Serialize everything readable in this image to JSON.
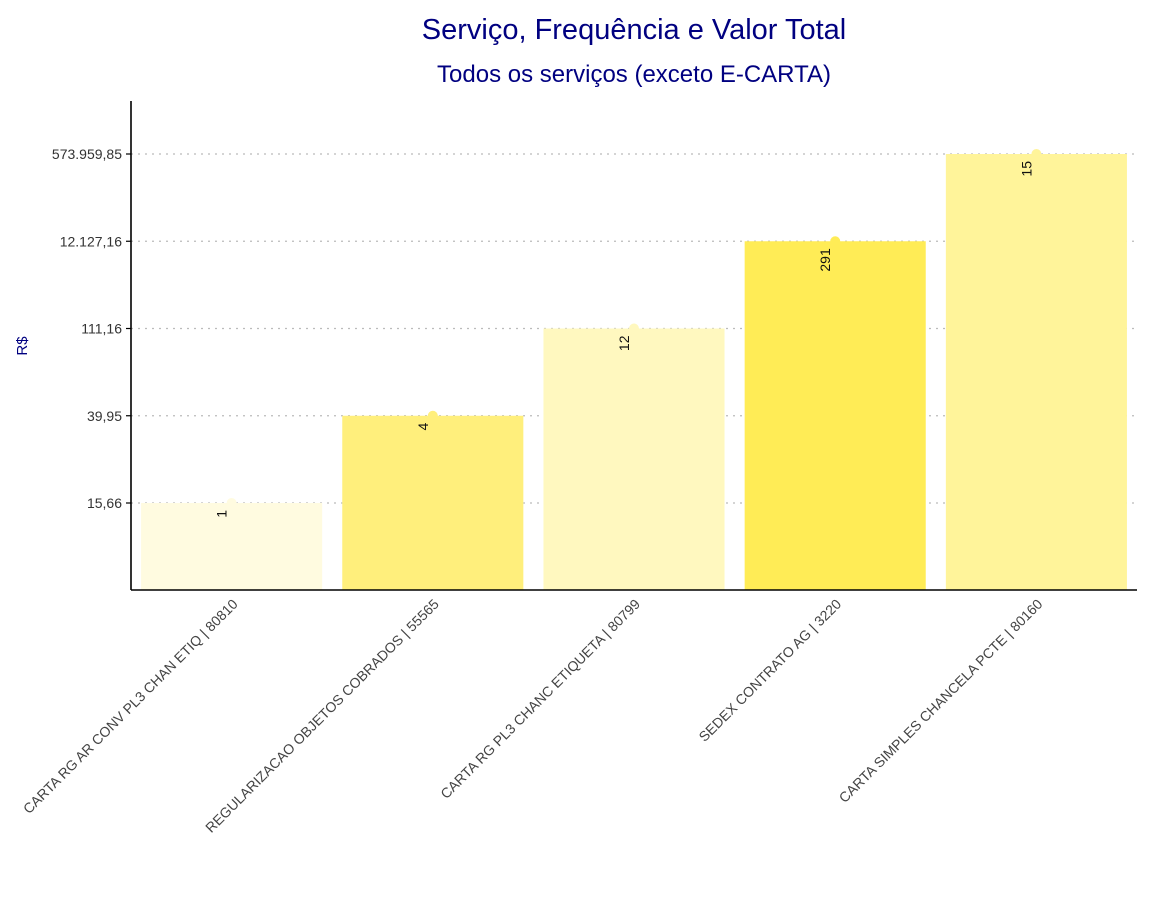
{
  "chart_data": {
    "type": "bar",
    "title": "Serviço, Frequência e Valor Total",
    "subtitle": "Todos os serviços (exceto E-CARTA)",
    "xlabel": "",
    "ylabel": "R$",
    "y_scale": "log",
    "grid": "horizontal dotted at tick values",
    "legend": "none",
    "yticks": [
      {
        "value": 15.66,
        "label": "15,66"
      },
      {
        "value": 39.95,
        "label": "39,95"
      },
      {
        "value": 111.16,
        "label": "111,16"
      },
      {
        "value": 12127.16,
        "label": "12.127,16"
      },
      {
        "value": 573959.85,
        "label": "573.959,85"
      }
    ],
    "categories": [
      "CARTA RG AR CONV PL3 CHAN ETIQ | 80810",
      "REGULARIZACAO OBJETOS COBRADOS | 55565",
      "CARTA RG PL3 CHANC ETIQUETA | 80799",
      "SEDEX CONTRATO AG | 3220",
      "CARTA SIMPLES CHANCELA PCTE | 80160"
    ],
    "values": [
      15.66,
      39.95,
      111.16,
      12127.16,
      573959.85
    ],
    "counts": [
      1,
      4,
      12,
      291,
      15
    ],
    "count_labels": [
      "1",
      "4",
      "12",
      "291",
      "15"
    ],
    "colors": {
      "title": "#000080",
      "bar_fills": [
        "#FFFBE0",
        "#FFEF7C",
        "#FFF8BF",
        "#FFEC56",
        "#FFF49A"
      ],
      "axis": "#000000",
      "grid": "#BBBBBB"
    }
  }
}
